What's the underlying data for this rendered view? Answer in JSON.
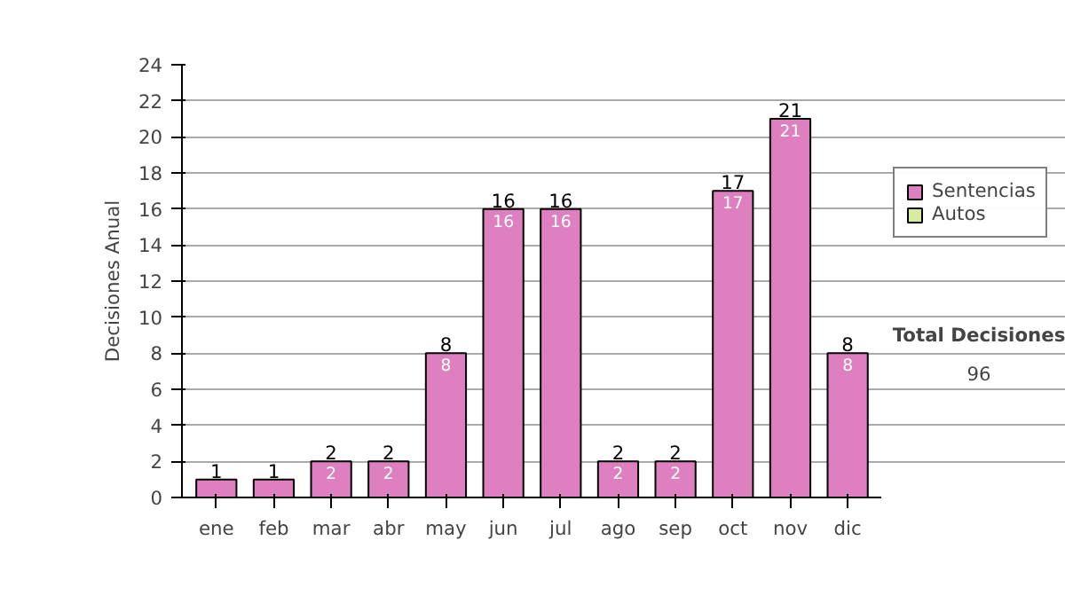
{
  "chart_data": {
    "type": "bar",
    "ylabel": "Decisiones Anual",
    "categories": [
      "ene",
      "feb",
      "mar",
      "abr",
      "may",
      "jun",
      "jul",
      "ago",
      "sep",
      "oct",
      "nov",
      "dic"
    ],
    "series": [
      {
        "name": "Sentencias",
        "color": "#de7fbf",
        "values": [
          1,
          1,
          2,
          2,
          8,
          16,
          16,
          2,
          2,
          17,
          21,
          8
        ],
        "value_labels": [
          null,
          null,
          "2",
          "2",
          "8",
          "16",
          "16",
          "2",
          "2",
          "17",
          "21",
          "8"
        ]
      },
      {
        "name": "Autos",
        "color": "#d6eca0",
        "values": [
          null,
          null,
          null,
          null,
          null,
          null,
          null,
          null,
          null,
          null,
          null,
          null
        ]
      }
    ],
    "totals": [
      "1",
      "1",
      "2",
      "2",
      "8",
      "16",
      "16",
      "2",
      "2",
      "17",
      "21",
      "8"
    ],
    "ylim": [
      0,
      24
    ],
    "yticks": [
      0,
      2,
      4,
      6,
      8,
      10,
      12,
      14,
      16,
      18,
      20,
      22,
      24
    ],
    "grid": "y",
    "legend": "right",
    "annotations": [
      "Total Decisiones",
      "96"
    ]
  }
}
